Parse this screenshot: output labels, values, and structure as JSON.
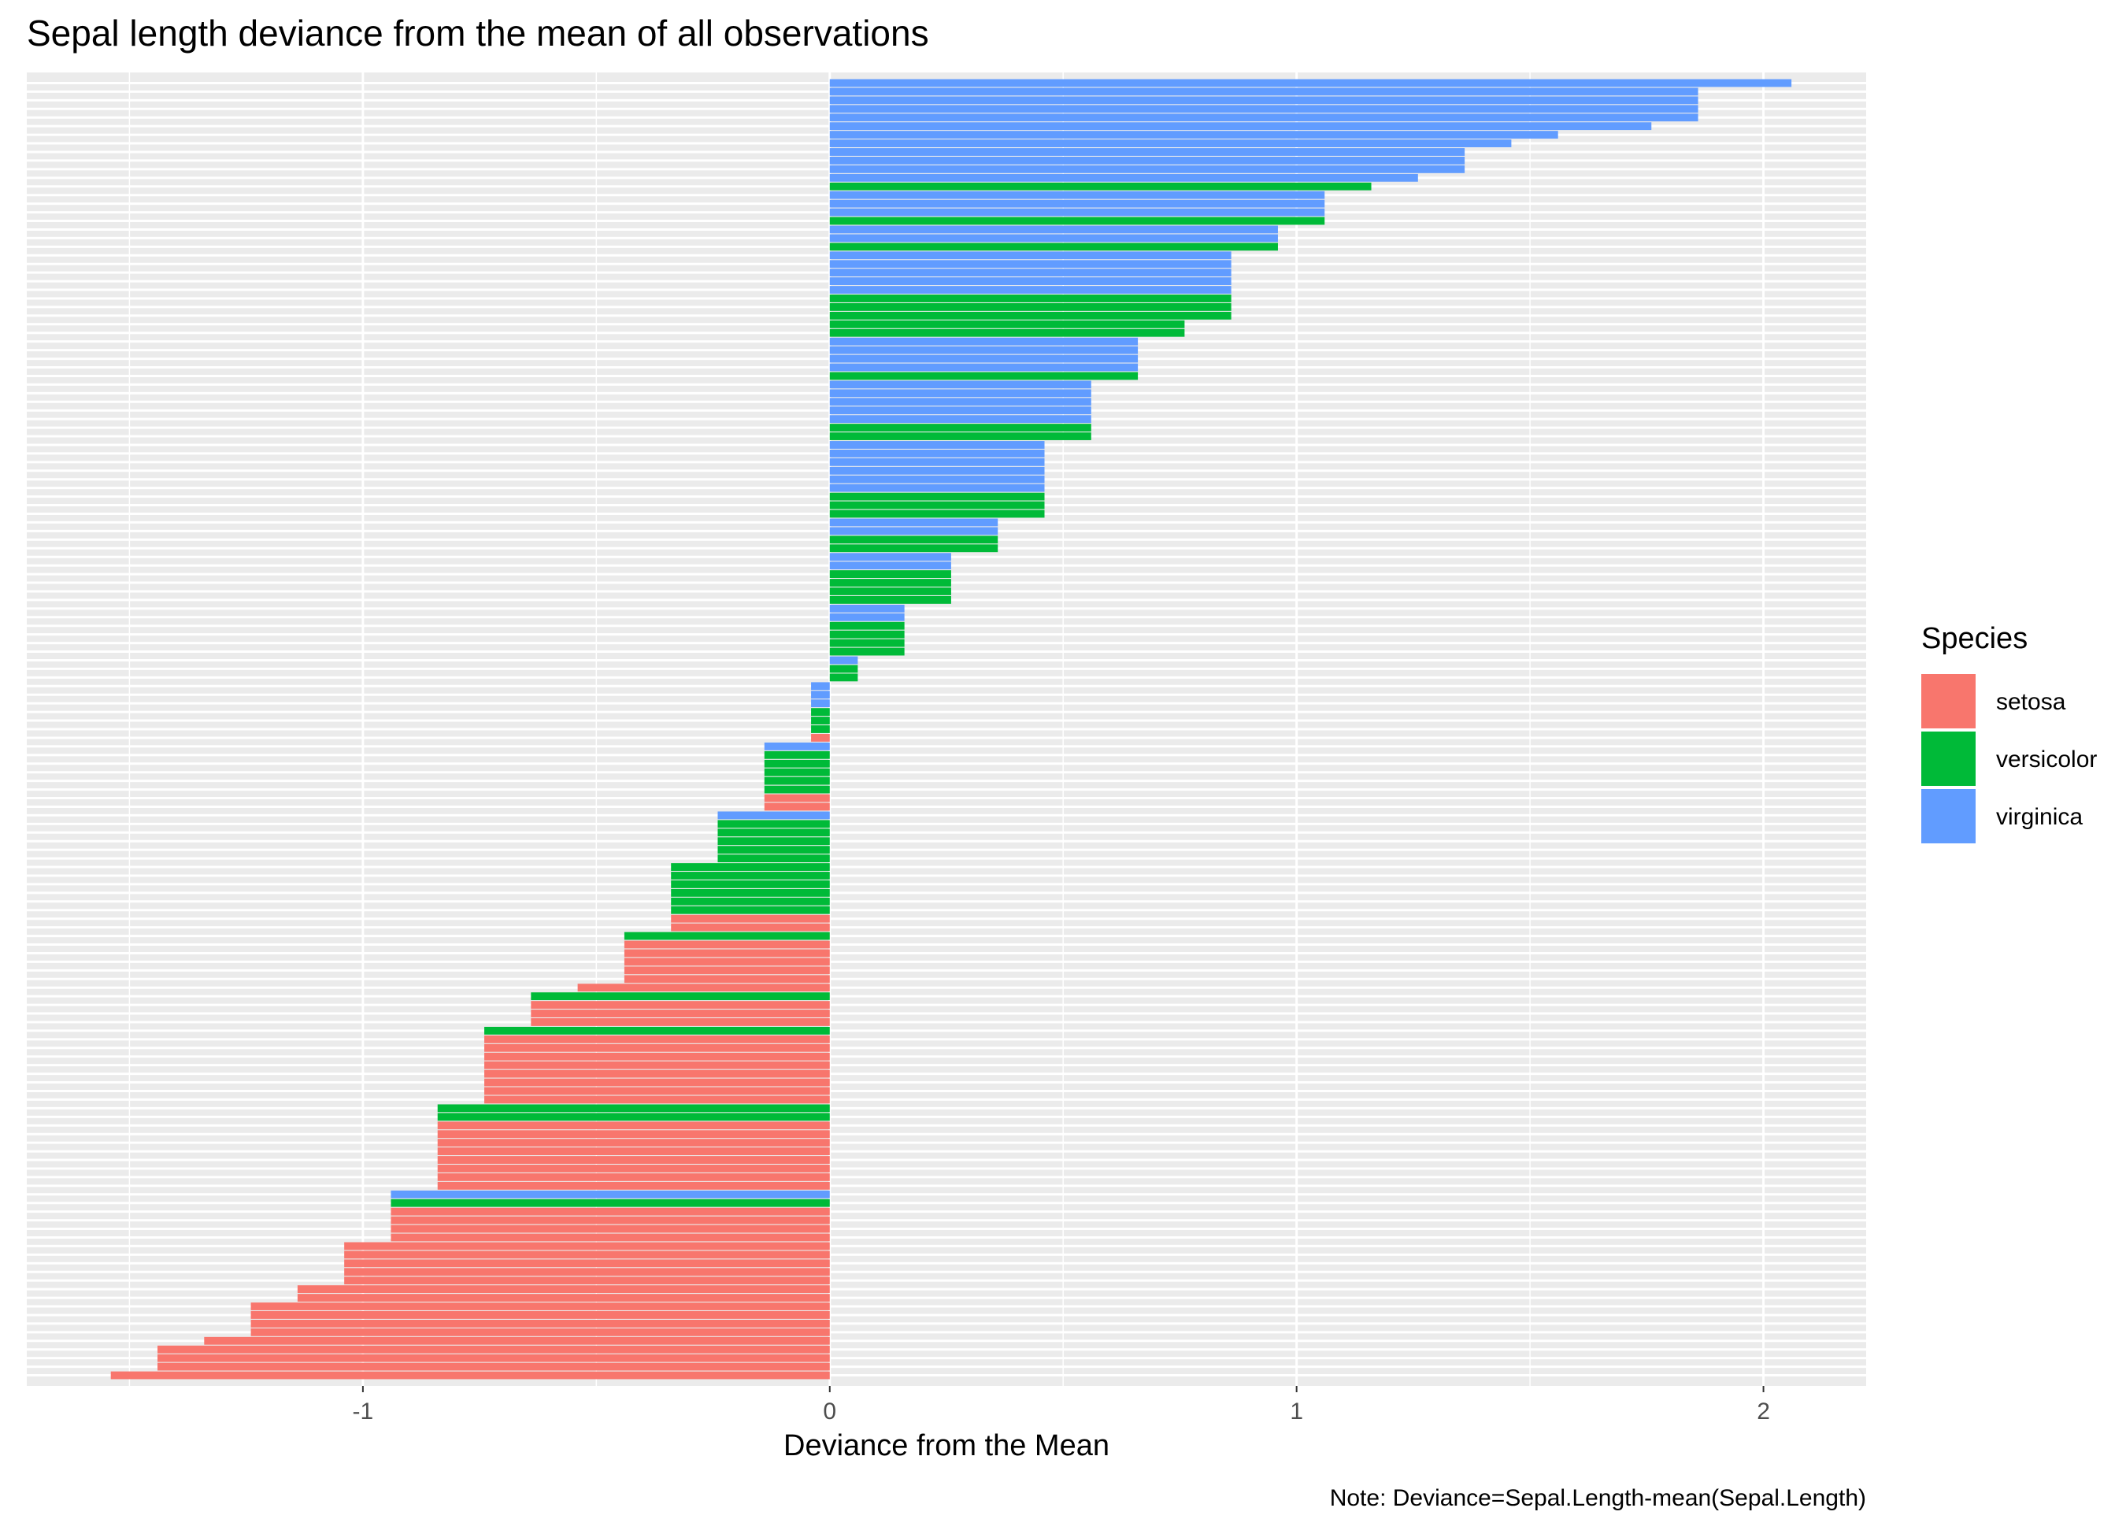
{
  "chart_data": {
    "type": "bar",
    "orientation": "horizontal",
    "title": "Sepal length deviance from the mean of all observations",
    "xlabel": "Deviance from the Mean",
    "ylabel": "",
    "caption": "Note: Deviance=Sepal.Length-mean(Sepal.Length)",
    "xlim": [
      -1.72,
      2.22
    ],
    "x_ticks": [
      -1,
      0,
      1,
      2
    ],
    "x_tick_labels": [
      "-1",
      "0",
      "1",
      "2"
    ],
    "grid": true,
    "legend": {
      "title": "Species",
      "position": "right",
      "entries": [
        {
          "name": "setosa",
          "color": "#F8766D"
        },
        {
          "name": "versicolor",
          "color": "#00BA38"
        },
        {
          "name": "virginica",
          "color": "#619CFF"
        }
      ]
    },
    "runs_note": "bars ordered top to bottom; each run is [species, deviance, number of consecutive bars]",
    "runs": [
      [
        "virginica",
        2.06,
        1
      ],
      [
        "virginica",
        1.86,
        4
      ],
      [
        "virginica",
        1.76,
        1
      ],
      [
        "virginica",
        1.56,
        1
      ],
      [
        "virginica",
        1.46,
        1
      ],
      [
        "virginica",
        1.36,
        3
      ],
      [
        "virginica",
        1.26,
        1
      ],
      [
        "versicolor",
        1.16,
        1
      ],
      [
        "virginica",
        1.06,
        3
      ],
      [
        "versicolor",
        1.06,
        1
      ],
      [
        "virginica",
        0.96,
        2
      ],
      [
        "versicolor",
        0.96,
        1
      ],
      [
        "virginica",
        0.86,
        5
      ],
      [
        "versicolor",
        0.86,
        3
      ],
      [
        "versicolor",
        0.76,
        2
      ],
      [
        "virginica",
        0.66,
        4
      ],
      [
        "versicolor",
        0.66,
        1
      ],
      [
        "virginica",
        0.56,
        5
      ],
      [
        "versicolor",
        0.56,
        2
      ],
      [
        "virginica",
        0.46,
        6
      ],
      [
        "versicolor",
        0.46,
        3
      ],
      [
        "virginica",
        0.36,
        2
      ],
      [
        "versicolor",
        0.36,
        2
      ],
      [
        "virginica",
        0.26,
        2
      ],
      [
        "versicolor",
        0.26,
        4
      ],
      [
        "virginica",
        0.16,
        2
      ],
      [
        "versicolor",
        0.16,
        4
      ],
      [
        "virginica",
        0.06,
        1
      ],
      [
        "versicolor",
        0.06,
        2
      ],
      [
        "virginica",
        -0.04,
        3
      ],
      [
        "versicolor",
        -0.04,
        3
      ],
      [
        "setosa",
        -0.04,
        1
      ],
      [
        "virginica",
        -0.14,
        1
      ],
      [
        "versicolor",
        -0.14,
        5
      ],
      [
        "setosa",
        -0.14,
        2
      ],
      [
        "virginica",
        -0.24,
        1
      ],
      [
        "versicolor",
        -0.24,
        5
      ],
      [
        "versicolor",
        -0.34,
        6
      ],
      [
        "setosa",
        -0.34,
        2
      ],
      [
        "versicolor",
        -0.44,
        1
      ],
      [
        "setosa",
        -0.44,
        5
      ],
      [
        "setosa",
        -0.54,
        1
      ],
      [
        "versicolor",
        -0.64,
        1
      ],
      [
        "setosa",
        -0.64,
        3
      ],
      [
        "versicolor",
        -0.74,
        1
      ],
      [
        "setosa",
        -0.74,
        8
      ],
      [
        "versicolor",
        -0.84,
        2
      ],
      [
        "setosa",
        -0.84,
        8
      ],
      [
        "virginica",
        -0.94,
        1
      ],
      [
        "versicolor",
        -0.94,
        1
      ],
      [
        "setosa",
        -0.94,
        4
      ],
      [
        "setosa",
        -1.04,
        5
      ],
      [
        "setosa",
        -1.14,
        2
      ],
      [
        "setosa",
        -1.24,
        4
      ],
      [
        "setosa",
        -1.34,
        1
      ],
      [
        "setosa",
        -1.44,
        3
      ],
      [
        "setosa",
        -1.54,
        1
      ]
    ]
  }
}
